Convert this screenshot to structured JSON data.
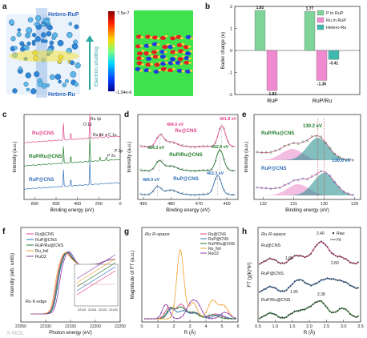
{
  "panel_labels": [
    "a",
    "b",
    "c",
    "d",
    "e",
    "f",
    "g",
    "h"
  ],
  "panel_a": {
    "top_label": "Hetero-RuP",
    "bottom_label": "Hetero-Ru",
    "shuttle_label": "Electron shuttling",
    "cbar_max": "7.5e-7",
    "cbar_min": "-1.34e-6"
  },
  "watermark": "X-MOL",
  "chart_data": [
    {
      "id": "b",
      "type": "bar",
      "categories": [
        "RuP",
        "RuP/Ru"
      ],
      "ylabel": "Bader charge (e)",
      "yticks": [
        "2",
        "1",
        "0",
        "-1",
        "-2"
      ],
      "ylim": [
        -2,
        2
      ],
      "series": [
        {
          "name": "P in RuP",
          "color": "#7fd49a",
          "values": [
            1.82,
            1.77
          ]
        },
        {
          "name": "Ru in RuP",
          "color": "#f08ad0",
          "values": [
            -1.82,
            -1.36
          ]
        },
        {
          "name": "Hetero-Ru",
          "color": "#3fb8b0",
          "values": [
            null,
            -0.41
          ]
        }
      ],
      "value_labels": [
        "1.82",
        "-1.82",
        "1.77",
        "-1.36",
        "-0.41"
      ]
    },
    {
      "id": "c",
      "type": "line",
      "xlabel": "Binding energy (eV)",
      "ylabel": "Intensity (a.u.)",
      "xticks": [
        "800",
        "600",
        "400",
        "200",
        "0"
      ],
      "series": [
        {
          "name": "Ru@CNS",
          "color": "#e0428a"
        },
        {
          "name": "RuP/Ru@CNS",
          "color": "#1e7a28"
        },
        {
          "name": "RuP@CNS",
          "color": "#2f6fb5"
        }
      ],
      "peak_labels": [
        "O 1s",
        "Ru 3p",
        "Ru 3d + C 1s",
        "P 2s",
        "P 2p"
      ]
    },
    {
      "id": "d",
      "type": "line",
      "xlabel": "Binding energy (eV)",
      "ylabel": "Intensity (a.u.)",
      "xticks": [
        "490",
        "480",
        "470",
        "460"
      ],
      "series": [
        {
          "name": "Ru@CNS",
          "color": "#e0428a"
        },
        {
          "name": "RuP/Ru@CNS",
          "color": "#1e7a28"
        },
        {
          "name": "RuP@CNS",
          "color": "#2f6fb5"
        }
      ],
      "annotations": [
        "484.0 eV",
        "461.8 eV",
        "484.3 eV",
        "462.5 eV",
        "484.9 eV",
        "463.3 eV"
      ]
    },
    {
      "id": "e",
      "type": "line",
      "xlabel": "Binding energy (eV)",
      "ylabel": "Intensity (a.u.)",
      "xticks": [
        "132",
        "131",
        "130",
        "129"
      ],
      "series": [
        {
          "name": "RuP/Ru@CNS",
          "color": "#1e7a28"
        },
        {
          "name": "RuP@CNS",
          "color": "#2f6fb5"
        }
      ],
      "annotations": [
        "130.2 eV",
        "130.0 eV"
      ]
    },
    {
      "id": "f",
      "type": "line",
      "xlabel": "Photon energy (eV)",
      "ylabel": "Intensity (arb. units)",
      "xticks": [
        "22050",
        "22100",
        "22150",
        "22200",
        "22250"
      ],
      "inset_xticks": [
        "22110",
        "22115",
        "22120",
        "22125"
      ],
      "edge_label": "Ru K-edge",
      "series": [
        {
          "name": "Ru@CNS",
          "color": "#e0428a"
        },
        {
          "name": "RuP@CNS",
          "color": "#2f6fb5"
        },
        {
          "name": "RuP/Ru@CNS",
          "color": "#1e7a28"
        },
        {
          "name": "Ru_foil",
          "color": "#f0a030"
        },
        {
          "name": "RuO2",
          "color": "#8a3fa8"
        }
      ]
    },
    {
      "id": "g",
      "type": "line",
      "title": "Ru R-space",
      "xlabel": "R (Å)",
      "ylabel": "Magnitude of FT (a.u.)",
      "xticks": [
        "0",
        "1",
        "2",
        "3",
        "4",
        "5",
        "6"
      ],
      "xlim": [
        0,
        6
      ],
      "series": [
        {
          "name": "Ru@CNS",
          "color": "#e0428a"
        },
        {
          "name": "RuP@CNS",
          "color": "#2f6fb5"
        },
        {
          "name": "RuP/Ru@CNS",
          "color": "#1e7a28"
        },
        {
          "name": "Ru_foil",
          "color": "#f0a030"
        },
        {
          "name": "RuO2",
          "color": "#8a3fa8"
        }
      ]
    },
    {
      "id": "h",
      "type": "line",
      "title": "Ru R-space",
      "xlabel": "R (Å)",
      "ylabel": "FT (χ(k)*k²)",
      "xticks": [
        "0.5",
        "1.0",
        "1.5",
        "2.0",
        "2.5",
        "3.0",
        "3.5"
      ],
      "xlim": [
        0.5,
        3.5
      ],
      "legend": [
        "Raw",
        "Fit"
      ],
      "series": [
        {
          "name": "Ru@CNS",
          "color": "#e0428a"
        },
        {
          "name": "RuP@CNS",
          "color": "#2f6fb5"
        },
        {
          "name": "RuP/Ru@CNS",
          "color": "#1e7a28"
        }
      ],
      "annotations": [
        "2.40",
        "1.80",
        "2.60",
        "1.95",
        "2.38"
      ]
    }
  ]
}
